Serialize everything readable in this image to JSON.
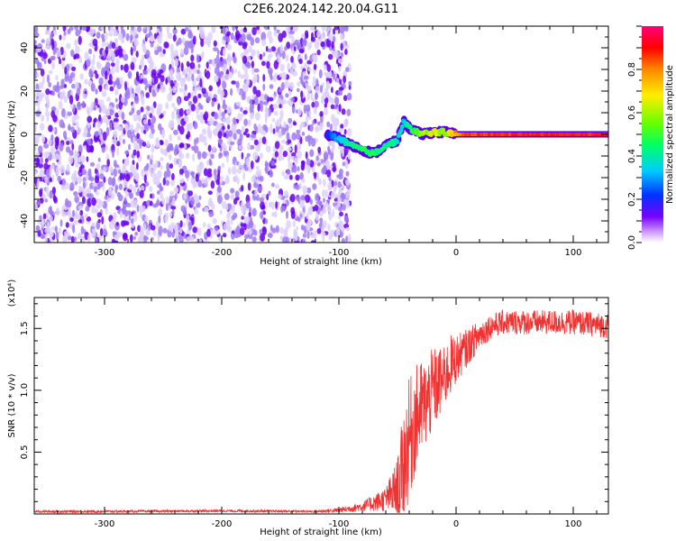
{
  "title": "C2E6.2024.142.20.04.G11",
  "colors": {
    "background": "#ffffff",
    "axis": "#000000",
    "snr_line": "#ee3333",
    "speckle_dark": "#6a00f0",
    "speckle_light": "#c9b6f8"
  },
  "chart_data": [
    {
      "type": "heatmap",
      "title": "",
      "xlabel": "Height of straight line (km)",
      "ylabel": "Frequency (Hz)",
      "xlim": [
        -360,
        130
      ],
      "ylim": [
        -50,
        50
      ],
      "xticks": [
        -300,
        -200,
        -100,
        0,
        100
      ],
      "xtick_labels": [
        "-300",
        "-200",
        "-100",
        "0",
        "100"
      ],
      "yticks": [
        -40,
        -20,
        0,
        20,
        40
      ],
      "ytick_labels": [
        "-40",
        "-20",
        "0",
        "20",
        "40"
      ],
      "noise_region_x": [
        -360,
        -95
      ],
      "ridge": {
        "x": [
          -110,
          -100,
          -90,
          -80,
          -70,
          -60,
          -50,
          -45,
          -40,
          -30,
          -20,
          -10,
          0,
          20,
          50,
          100,
          130
        ],
        "y": [
          0,
          -2,
          -5,
          -7,
          -9,
          -5,
          -3,
          6,
          3,
          0,
          1,
          1,
          0,
          0,
          0,
          0,
          0
        ],
        "amplitude": [
          0.2,
          0.35,
          0.45,
          0.5,
          0.5,
          0.45,
          0.4,
          0.35,
          0.45,
          0.6,
          0.7,
          0.6,
          0.8,
          0.9,
          0.95,
          0.95,
          0.95
        ]
      },
      "colorbar": {
        "label": "Normalized spectral amplitude",
        "range": [
          0,
          1
        ],
        "ticks": [
          0.0,
          0.2,
          0.4,
          0.6,
          0.8
        ],
        "tick_labels": [
          "0.0",
          "0.2",
          "0.4",
          "0.6",
          "0.8"
        ],
        "colormap": [
          "#ffffff",
          "#7700ff",
          "#0033ff",
          "#00ccff",
          "#00ff66",
          "#88ff00",
          "#ffee00",
          "#ff8800",
          "#ff0000",
          "#ff0077"
        ]
      },
      "grid": false,
      "legend": "none"
    },
    {
      "type": "line",
      "title": "",
      "xlabel": "Height of straight line (km)",
      "ylabel": "SNR (10 * v/v)",
      "y_multiplier_label": "(x10⁴)",
      "xlim": [
        -360,
        130
      ],
      "ylim": [
        0,
        1.75
      ],
      "xticks": [
        -300,
        -200,
        -100,
        0,
        100
      ],
      "xtick_labels": [
        "-300",
        "-200",
        "-100",
        "0",
        "100"
      ],
      "yticks": [
        0.5,
        1.0,
        1.5
      ],
      "ytick_labels": [
        "0.5",
        "1.0",
        "1.5"
      ],
      "series": [
        {
          "x": [
            -360,
            -300,
            -200,
            -120,
            -100,
            -80,
            -60,
            -50,
            -45,
            -40,
            -35,
            -30,
            -25,
            -20,
            -15,
            -10,
            -5,
            0,
            10,
            20,
            30,
            40,
            60,
            80,
            100,
            130
          ],
          "y": [
            0.02,
            0.02,
            0.025,
            0.02,
            0.03,
            0.06,
            0.12,
            0.2,
            0.4,
            0.6,
            0.75,
            0.85,
            0.9,
            1.0,
            1.05,
            1.1,
            1.2,
            1.25,
            1.35,
            1.45,
            1.52,
            1.55,
            1.55,
            1.55,
            1.55,
            1.52
          ],
          "noise_amplitude": [
            0.01,
            0.01,
            0.01,
            0.01,
            0.02,
            0.04,
            0.1,
            0.25,
            0.45,
            0.5,
            0.45,
            0.4,
            0.35,
            0.35,
            0.3,
            0.25,
            0.25,
            0.2,
            0.15,
            0.12,
            0.1,
            0.1,
            0.1,
            0.1,
            0.1,
            0.1
          ]
        }
      ],
      "grid": false,
      "legend": "none"
    }
  ]
}
